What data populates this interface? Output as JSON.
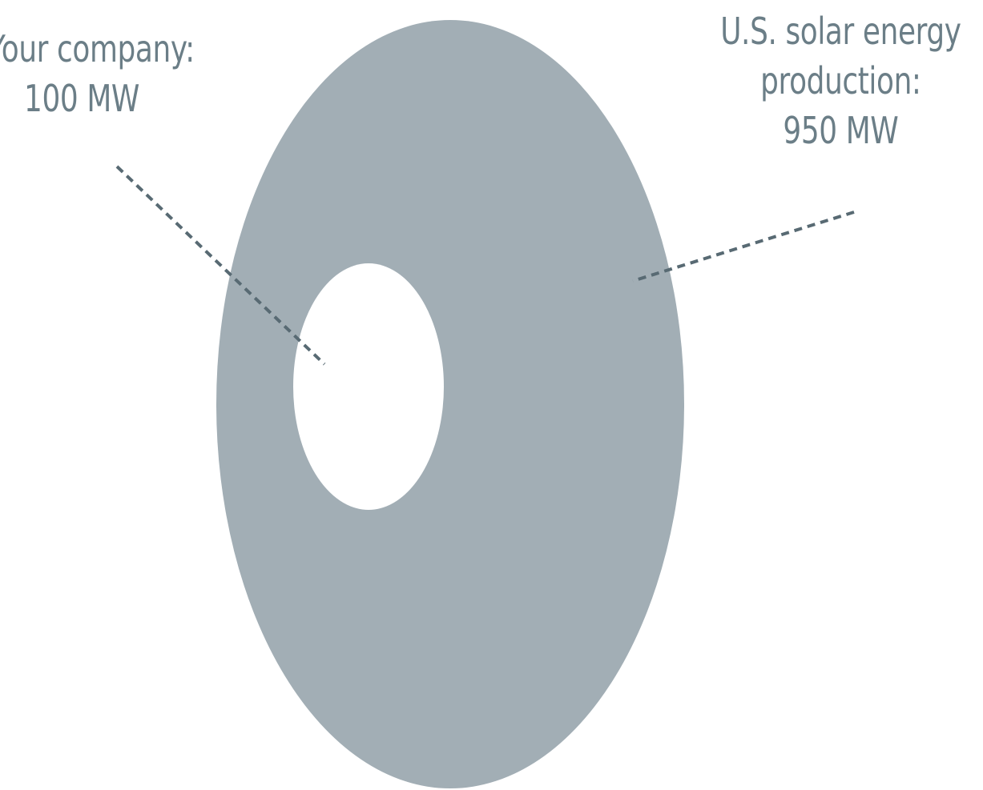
{
  "colors": {
    "outer_disc": "#a2aeb5",
    "inner_disc": "#ffffff",
    "leader_line": "#586a73",
    "label_text": "#6b7e87"
  },
  "labels": {
    "company": {
      "line1": "Your company:",
      "line2": "100 MW"
    },
    "us": {
      "line1": "U.S. solar energy",
      "line2": "production:",
      "line3": "950 MW"
    }
  },
  "values": {
    "company_mw": 100,
    "us_mw": 950
  }
}
